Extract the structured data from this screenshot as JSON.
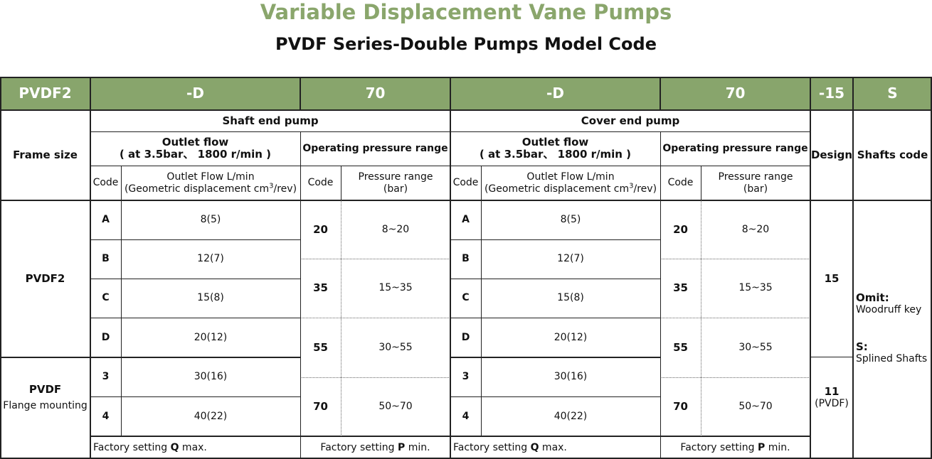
{
  "title": "Variable Displacement Vane Pumps",
  "subtitle": "PVDF Series-Double Pumps Model Code",
  "code_row": [
    "PVDF2",
    "-D",
    "70",
    "-D",
    "70",
    "-15",
    "S"
  ],
  "headers": {
    "frame_size": "Frame size",
    "shaft_end_pump": "Shaft end pump",
    "cover_end_pump": "Cover end pump",
    "outlet_flow": "Outlet flow",
    "outlet_flow_cond": "( at 3.5bar、 1800 r/min )",
    "op_pressure_range": "Operating pressure range",
    "design": "Design",
    "shafts_code": "Shafts code",
    "code": "Code",
    "outlet_flow_unit_1": "Outlet Flow L/min",
    "outlet_flow_unit_2": "(Geometric displacement cm",
    "outlet_flow_unit_sup": "3",
    "outlet_flow_unit_3": "/rev)",
    "pressure_range_1": "Pressure range",
    "pressure_range_2": "(bar)"
  },
  "frames": [
    {
      "name": "PVDF2",
      "note": ""
    },
    {
      "name": "PVDF",
      "note": "Flange mounting"
    }
  ],
  "flow_rows": [
    {
      "code": "A",
      "flow": "8(5)"
    },
    {
      "code": "B",
      "flow": "12(7)"
    },
    {
      "code": "C",
      "flow": "15(8)"
    },
    {
      "code": "D",
      "flow": "20(12)"
    },
    {
      "code": "3",
      "flow": "30(16)"
    },
    {
      "code": "4",
      "flow": "40(22)"
    }
  ],
  "pressure_rows": [
    {
      "code": "20",
      "range": "8~20"
    },
    {
      "code": "35",
      "range": "15~35"
    },
    {
      "code": "55",
      "range": "30~55"
    },
    {
      "code": "70",
      "range": "50~70"
    }
  ],
  "design_rows": [
    {
      "code": "15",
      "note": ""
    },
    {
      "code": "11",
      "note": "(PVDF)"
    }
  ],
  "shaft_codes": [
    {
      "code": "Omit:",
      "desc": "Woodruff key"
    },
    {
      "code": "S:",
      "desc": "Splined Shafts"
    }
  ],
  "footer": {
    "factory_q_prefix": "Factory setting ",
    "factory_q_bold": "Q",
    "factory_q_suffix": " max.",
    "factory_p_prefix": "Factory setting ",
    "factory_p_bold": "P",
    "factory_p_suffix": " min."
  }
}
